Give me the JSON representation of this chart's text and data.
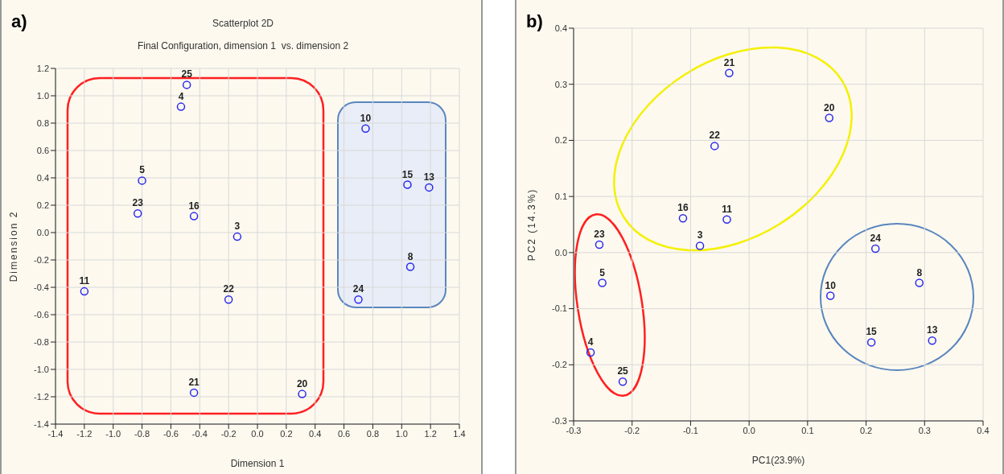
{
  "chart_data": [
    {
      "type": "scatter",
      "title": "Scatterplot 2D",
      "subtitle": "Final Configuration, dimension 1  vs. dimension 2",
      "xlabel": "Dimension 1",
      "ylabel": "Dimension 2",
      "annotations": [
        "a)",
        {
          "text": "25",
          "x": -0.49,
          "y": 1.08
        },
        {
          "text": "4",
          "x": -0.53,
          "y": 0.92
        },
        {
          "text": "5",
          "x": -0.8,
          "y": 0.38
        },
        {
          "text": "23",
          "x": -0.83,
          "y": 0.14
        },
        {
          "text": "16",
          "x": -0.44,
          "y": 0.12
        },
        {
          "text": "3",
          "x": -0.14,
          "y": -0.03
        },
        {
          "text": "11",
          "x": -1.2,
          "y": -0.43
        },
        {
          "text": "22",
          "x": -0.2,
          "y": -0.49
        },
        {
          "text": "21",
          "x": -0.44,
          "y": -1.17
        },
        {
          "text": "20",
          "x": 0.31,
          "y": -1.18
        },
        {
          "text": "10",
          "x": 0.75,
          "y": 0.76
        },
        {
          "text": "15",
          "x": 1.04,
          "y": 0.35
        },
        {
          "text": "13",
          "x": 1.19,
          "y": 0.33
        },
        {
          "text": "8",
          "x": 1.06,
          "y": -0.25
        },
        {
          "text": "24",
          "x": 0.7,
          "y": -0.49
        }
      ],
      "series": [
        {
          "color": "#2a2aee",
          "x": [
            -0.49,
            -0.53,
            -0.8,
            -0.83,
            -0.44,
            -0.14,
            -1.2,
            -0.2,
            -0.44,
            0.31,
            0.75,
            1.04,
            1.19,
            1.06,
            0.7
          ],
          "values": [
            1.08,
            0.92,
            0.38,
            0.14,
            0.12,
            -0.03,
            -0.43,
            -0.49,
            -1.17,
            -1.18,
            0.76,
            0.35,
            0.33,
            -0.25,
            -0.49
          ]
        }
      ],
      "xlim": [
        -1.4,
        1.4
      ],
      "xticks": [
        -1.4,
        -1.2,
        {
          "value": -1,
          "label": "-1.0"
        },
        -0.8,
        -0.6,
        -0.4,
        -0.2,
        {
          "value": 0,
          "label": "0.0"
        },
        0.2,
        0.4,
        0.6,
        0.8,
        {
          "value": 1,
          "label": "1.0"
        },
        1.2,
        1.4
      ],
      "ylim": [
        -1.4,
        1.2
      ],
      "yticks": [
        -1.4,
        -1.2,
        {
          "value": -1,
          "label": "-1.0"
        },
        -0.8,
        -0.6,
        -0.4,
        -0.2,
        {
          "value": 0,
          "label": "0.0"
        },
        0.2,
        0.4,
        0.6,
        0.8,
        {
          "value": 1,
          "label": "1.0"
        },
        1.2
      ],
      "grid": true,
      "marker": "circle"
    },
    {
      "type": "scatter",
      "xlabel": "PC1(23.9%)",
      "ylabel": "PC2 (14.3%)",
      "annotations": [
        "b)",
        {
          "text": "21",
          "x": -0.034,
          "y": 0.32
        },
        {
          "text": "20",
          "x": 0.137,
          "y": 0.24
        },
        {
          "text": "22",
          "x": -0.059,
          "y": 0.19
        },
        {
          "text": "16",
          "x": -0.113,
          "y": 0.061
        },
        {
          "text": "11",
          "x": -0.038,
          "y": 0.059
        },
        {
          "text": "3",
          "x": -0.084,
          "y": 0.012
        },
        {
          "text": "23",
          "x": -0.256,
          "y": 0.014
        },
        {
          "text": "5",
          "x": -0.251,
          "y": -0.054
        },
        {
          "text": "4",
          "x": -0.271,
          "y": -0.178
        },
        {
          "text": "25",
          "x": -0.216,
          "y": -0.23
        },
        {
          "text": "24",
          "x": 0.216,
          "y": 0.007
        },
        {
          "text": "8",
          "x": 0.291,
          "y": -0.054
        },
        {
          "text": "10",
          "x": 0.139,
          "y": -0.077
        },
        {
          "text": "15",
          "x": 0.209,
          "y": -0.16
        },
        {
          "text": "13",
          "x": 0.313,
          "y": -0.157
        }
      ],
      "series": [
        {
          "color": "#2a2aee",
          "x": [
            -0.034,
            0.137,
            -0.059,
            -0.113,
            -0.038,
            -0.084,
            -0.256,
            -0.251,
            -0.271,
            -0.216,
            0.216,
            0.291,
            0.139,
            0.209,
            0.313
          ],
          "values": [
            0.32,
            0.24,
            0.19,
            0.061,
            0.059,
            0.012,
            0.014,
            -0.054,
            -0.178,
            -0.23,
            0.007,
            -0.054,
            -0.077,
            -0.16,
            -0.157
          ]
        }
      ],
      "xlim": [
        -0.3,
        0.4
      ],
      "xticks": [
        -0.3,
        -0.2,
        -0.1,
        {
          "value": 0,
          "label": "0.0"
        },
        0.1,
        0.2,
        0.3,
        0.4
      ],
      "ylim": [
        -0.3,
        0.4
      ],
      "yticks": [
        -0.3,
        -0.2,
        -0.1,
        {
          "value": 0,
          "label": "0.0"
        },
        0.1,
        0.2,
        0.3,
        0.4
      ],
      "grid": true,
      "marker": "circle"
    }
  ]
}
